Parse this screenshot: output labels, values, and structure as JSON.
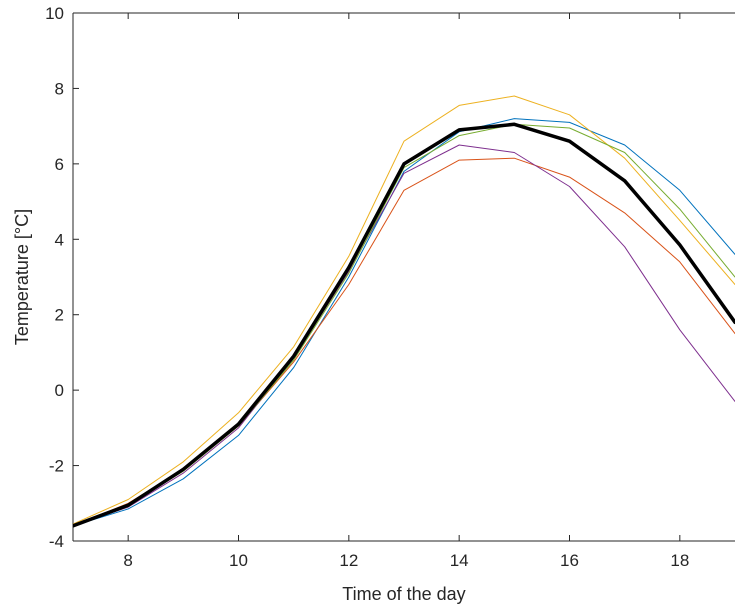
{
  "chart_data": {
    "type": "line",
    "xlabel": "Time of the day",
    "ylabel": "Temperature [°C]",
    "xlim": [
      7,
      19
    ],
    "ylim": [
      -4,
      10
    ],
    "xticks": [
      8,
      10,
      12,
      14,
      16,
      18
    ],
    "yticks": [
      -4,
      -2,
      0,
      2,
      4,
      6,
      8,
      10
    ],
    "grid": false,
    "series": [
      {
        "color": "#0072BD",
        "width": 1,
        "x": [
          7,
          8,
          9,
          10,
          11,
          12,
          13,
          14,
          15,
          16,
          17,
          18,
          19
        ],
        "y": [
          -3.6,
          -3.15,
          -2.35,
          -1.2,
          0.6,
          3.0,
          5.8,
          6.85,
          7.2,
          7.1,
          6.5,
          5.3,
          3.6
        ]
      },
      {
        "color": "#D95319",
        "width": 1,
        "x": [
          7,
          8,
          9,
          10,
          11,
          12,
          13,
          14,
          15,
          16,
          17,
          18,
          19
        ],
        "y": [
          -3.6,
          -3.0,
          -2.1,
          -0.95,
          0.75,
          2.8,
          5.3,
          6.1,
          6.15,
          5.65,
          4.7,
          3.4,
          1.5
        ]
      },
      {
        "color": "#EDB120",
        "width": 1,
        "x": [
          7,
          8,
          9,
          10,
          11,
          12,
          13,
          14,
          15,
          16,
          17,
          18,
          19
        ],
        "y": [
          -3.55,
          -2.9,
          -1.9,
          -0.6,
          1.15,
          3.55,
          6.6,
          7.55,
          7.8,
          7.3,
          6.15,
          4.5,
          2.8
        ]
      },
      {
        "color": "#7E2F8E",
        "width": 1,
        "x": [
          7,
          8,
          9,
          10,
          11,
          12,
          13,
          14,
          15,
          16,
          17,
          18,
          19
        ],
        "y": [
          -3.6,
          -3.1,
          -2.2,
          -1.0,
          0.85,
          3.15,
          5.75,
          6.5,
          6.3,
          5.4,
          3.8,
          1.6,
          -0.3
        ]
      },
      {
        "color": "#77AC30",
        "width": 1,
        "x": [
          7,
          8,
          9,
          10,
          11,
          12,
          13,
          14,
          15,
          16,
          17,
          18,
          19
        ],
        "y": [
          -3.6,
          -3.05,
          -2.15,
          -0.95,
          0.8,
          3.1,
          5.9,
          6.75,
          7.05,
          6.95,
          6.3,
          4.8,
          3.0
        ]
      },
      {
        "color": "#000000",
        "width": 3.5,
        "x": [
          7,
          8,
          9,
          10,
          11,
          12,
          13,
          14,
          15,
          16,
          17,
          18,
          19
        ],
        "y": [
          -3.6,
          -3.05,
          -2.1,
          -0.9,
          0.9,
          3.25,
          6.0,
          6.9,
          7.05,
          6.6,
          5.55,
          3.85,
          1.8
        ]
      }
    ]
  }
}
